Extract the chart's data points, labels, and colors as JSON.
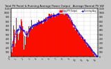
{
  "title": "Total PV Panel & Running Average Power Output",
  "title2": "Average Normal PV kW",
  "bg_color": "#c8c8c8",
  "plot_bg": "#ffffff",
  "bar_color": "#ff1100",
  "bar_edge_color": "#dd0000",
  "avg_line_color": "#0000ff",
  "grid_color": "#888888",
  "ylim": [
    0,
    1100
  ],
  "n_bars": 150,
  "legend_items": [
    "Total PV Output",
    "Running Avg"
  ],
  "legend_colors": [
    "#ff1100",
    "#0000ff"
  ],
  "figsize": [
    1.6,
    1.0
  ],
  "dpi": 100
}
